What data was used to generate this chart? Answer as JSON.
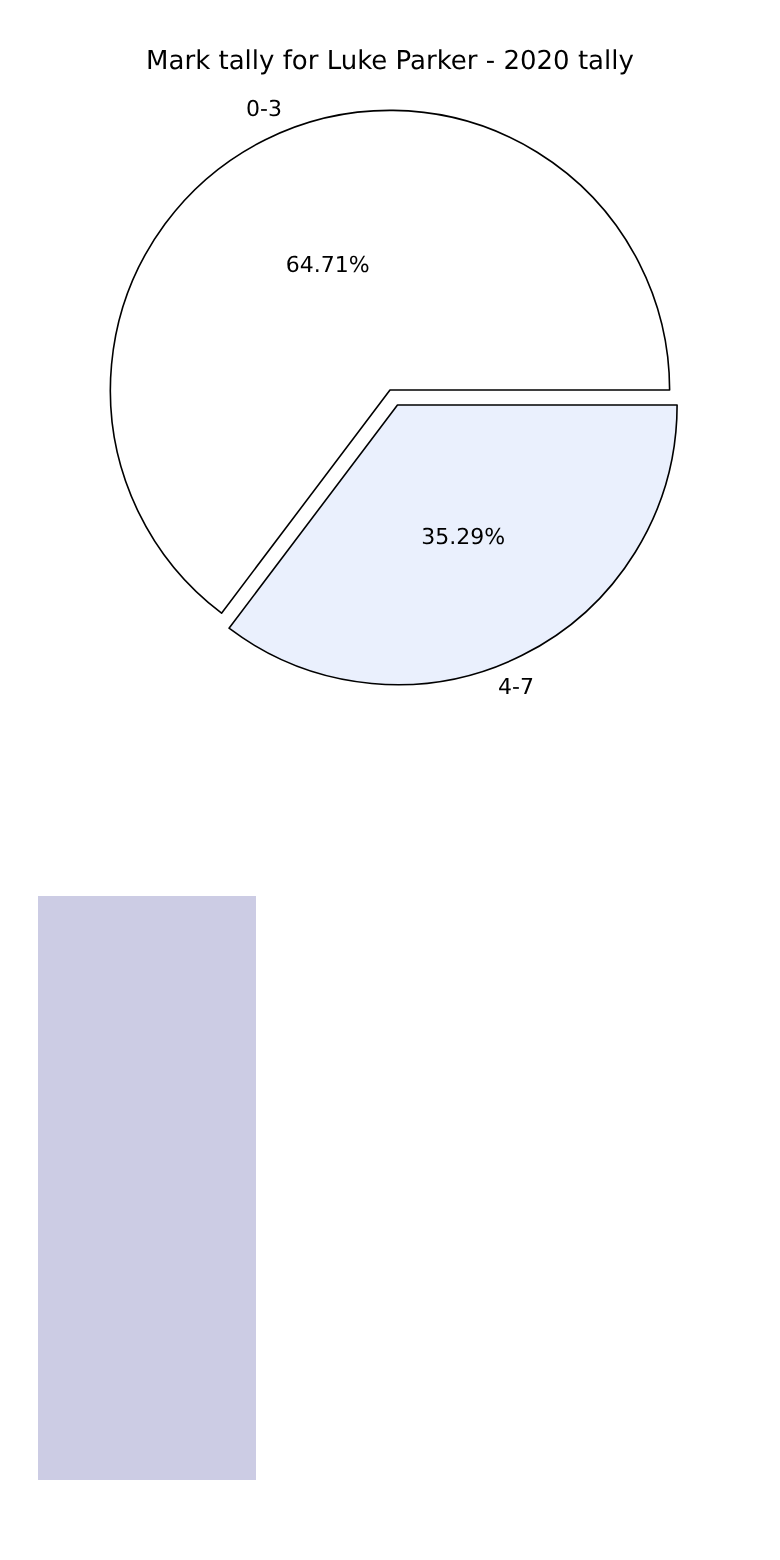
{
  "chart_data": {
    "type": "pie",
    "title": "Mark tally for Luke Parker - 2020 tally",
    "categories": [
      "0-3",
      "4-7"
    ],
    "values": [
      64.71,
      35.29
    ],
    "colors": [
      "#ffffff",
      "#eaf0fd"
    ],
    "value_labels": [
      "64.71%",
      "35.29%"
    ],
    "legend": false
  }
}
